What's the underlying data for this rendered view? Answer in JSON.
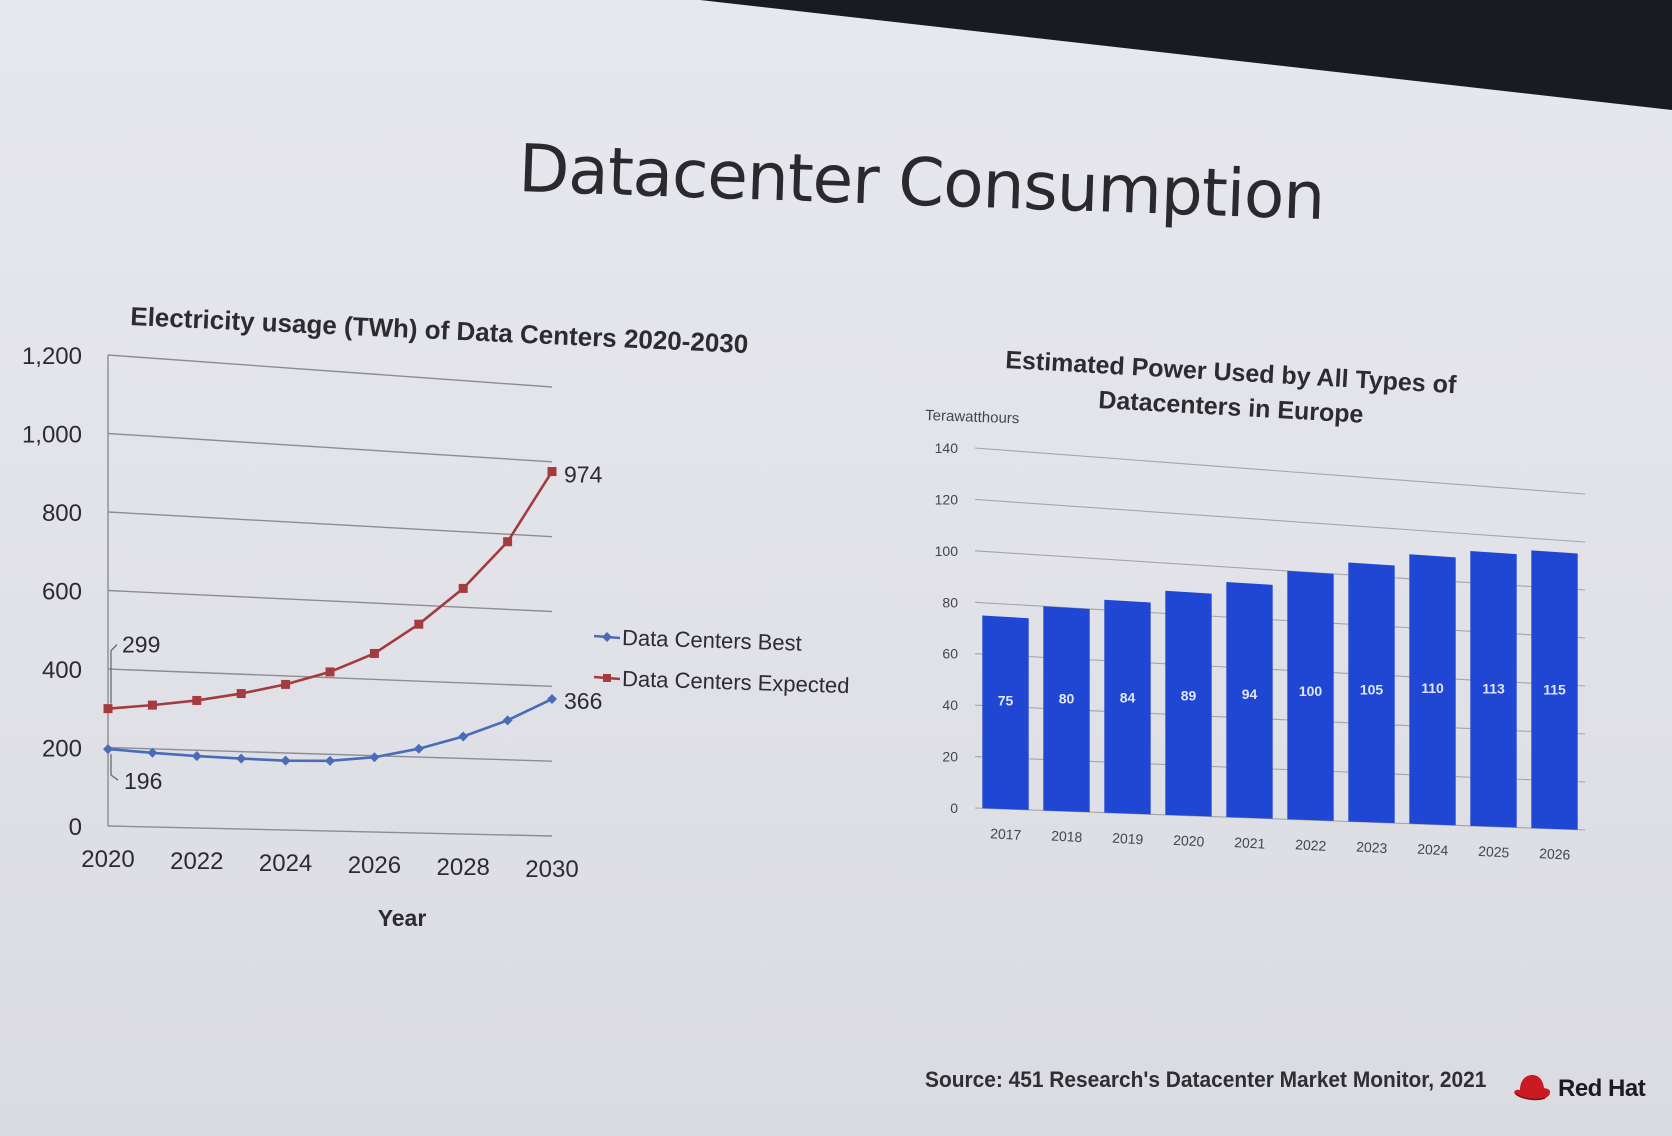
{
  "slide": {
    "title": "Datacenter Consumption",
    "source": "Source: 451 Research's Datacenter Market Monitor, 2021",
    "logo_text": "Red Hat",
    "accent_red": "#cc1a22"
  },
  "chart_data": [
    {
      "type": "line",
      "title": "Electricity usage (TWh) of Data Centers 2020-2030",
      "xlabel": "Year",
      "ylabel": "",
      "ylim": [
        0,
        1200
      ],
      "yticks": [
        "0",
        "200",
        "400",
        "600",
        "800",
        "1,000",
        "1,200"
      ],
      "xtick_labels": [
        "2020",
        "2022",
        "2024",
        "2026",
        "2028",
        "2030"
      ],
      "x": [
        2020,
        2021,
        2022,
        2023,
        2024,
        2025,
        2026,
        2027,
        2028,
        2029,
        2030
      ],
      "series": [
        {
          "name": "Data Centers Best",
          "color": "#4a6cb8",
          "values": [
            196,
            190,
            185,
            182,
            180,
            183,
            196,
            222,
            258,
            305,
            366
          ]
        },
        {
          "name": "Data Centers Expected",
          "color": "#a33b3f",
          "values": [
            299,
            312,
            328,
            350,
            378,
            415,
            468,
            550,
            650,
            780,
            974
          ]
        }
      ],
      "annotations": [
        {
          "text": "299",
          "series": 1,
          "index": 0
        },
        {
          "text": "196",
          "series": 0,
          "index": 0
        },
        {
          "text": "974",
          "series": 1,
          "index": 10
        },
        {
          "text": "366",
          "series": 0,
          "index": 10
        }
      ],
      "legend": "right",
      "grid": true
    },
    {
      "type": "bar",
      "title": "Estimated Power Used by All Types of",
      "title_line2": "Datacenters in Europe",
      "ylabel": "Terawatthours",
      "ylim": [
        0,
        140
      ],
      "yticks": [
        "0",
        "20",
        "40",
        "60",
        "80",
        "100",
        "120",
        "140"
      ],
      "categories": [
        "2017",
        "2018",
        "2019",
        "2020",
        "2021",
        "2022",
        "2023",
        "2024",
        "2025",
        "2026"
      ],
      "values": [
        75,
        80,
        84,
        89,
        94,
        100,
        105,
        110,
        113,
        115
      ],
      "bar_color": "#1f47d3",
      "grid": true
    }
  ]
}
